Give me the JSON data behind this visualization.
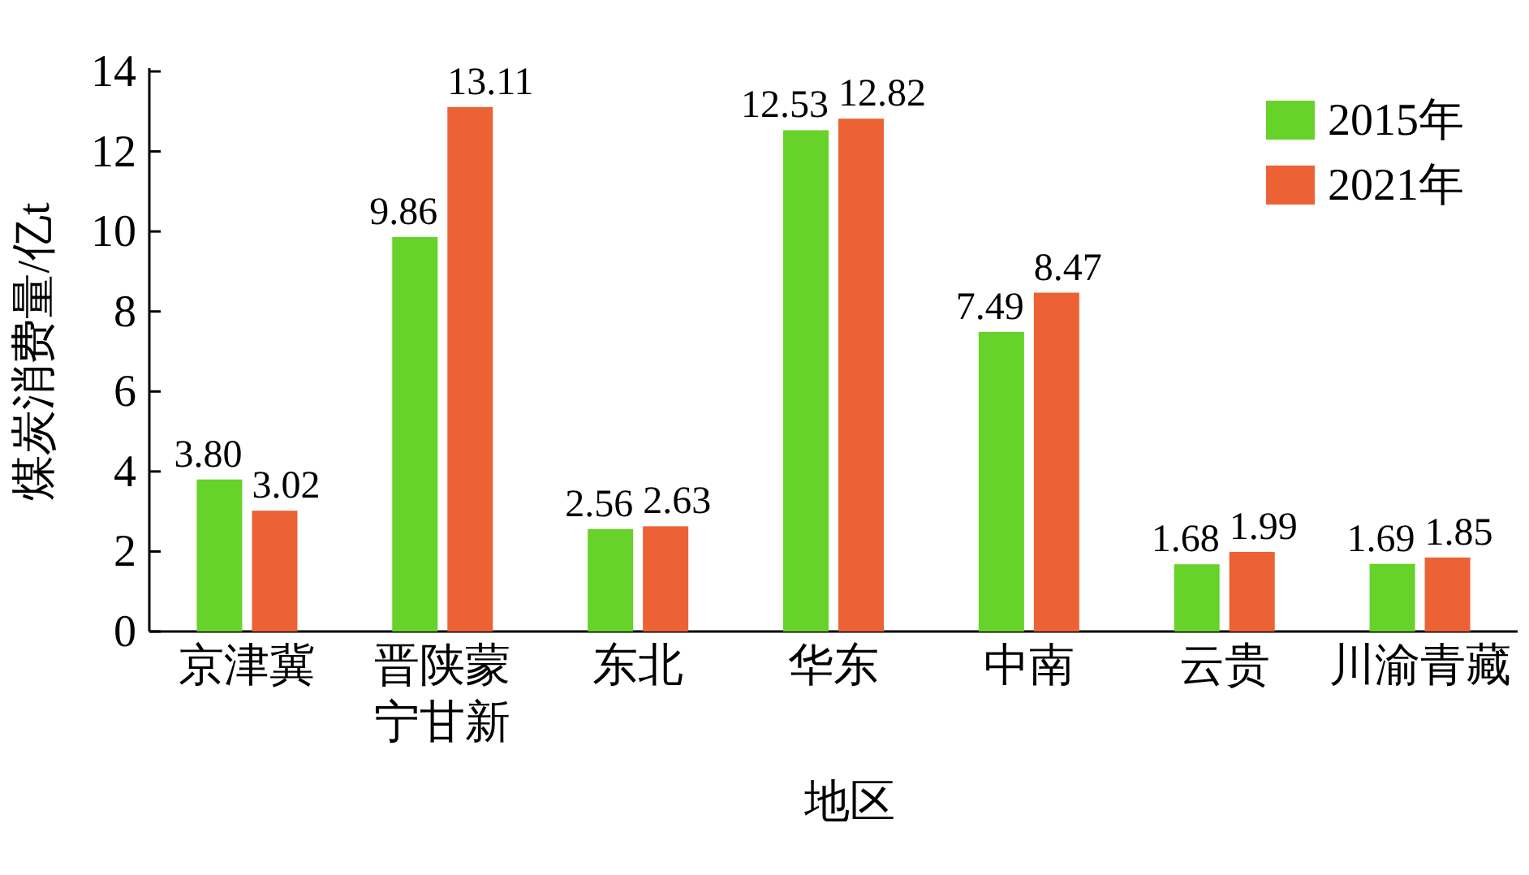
{
  "chart_data": {
    "type": "bar",
    "xlabel": "地区",
    "ylabel": "煤炭消费量/亿t",
    "categories": [
      "京津冀",
      "晋陕蒙宁甘新",
      "东北",
      "华东",
      "中南",
      "云贵",
      "川渝青藏"
    ],
    "series": [
      {
        "name": "2015年",
        "color": "#66d22a",
        "values": [
          3.8,
          9.86,
          2.56,
          12.53,
          7.49,
          1.68,
          1.69
        ],
        "value_labels": [
          "3.80",
          "9.86",
          "2.56",
          "12.53",
          "7.49",
          "1.68",
          "1.69"
        ]
      },
      {
        "name": "2021年",
        "color": "#ec6235",
        "values": [
          3.02,
          13.11,
          2.63,
          12.82,
          8.47,
          1.99,
          1.85
        ],
        "value_labels": [
          "3.02",
          "13.11",
          "2.63",
          "12.82",
          "8.47",
          "1.99",
          "1.85"
        ]
      }
    ],
    "ylim": [
      0,
      14
    ],
    "yticks": [
      0,
      2,
      4,
      6,
      8,
      10,
      12,
      14
    ],
    "legend": "top right",
    "grid": false
  }
}
